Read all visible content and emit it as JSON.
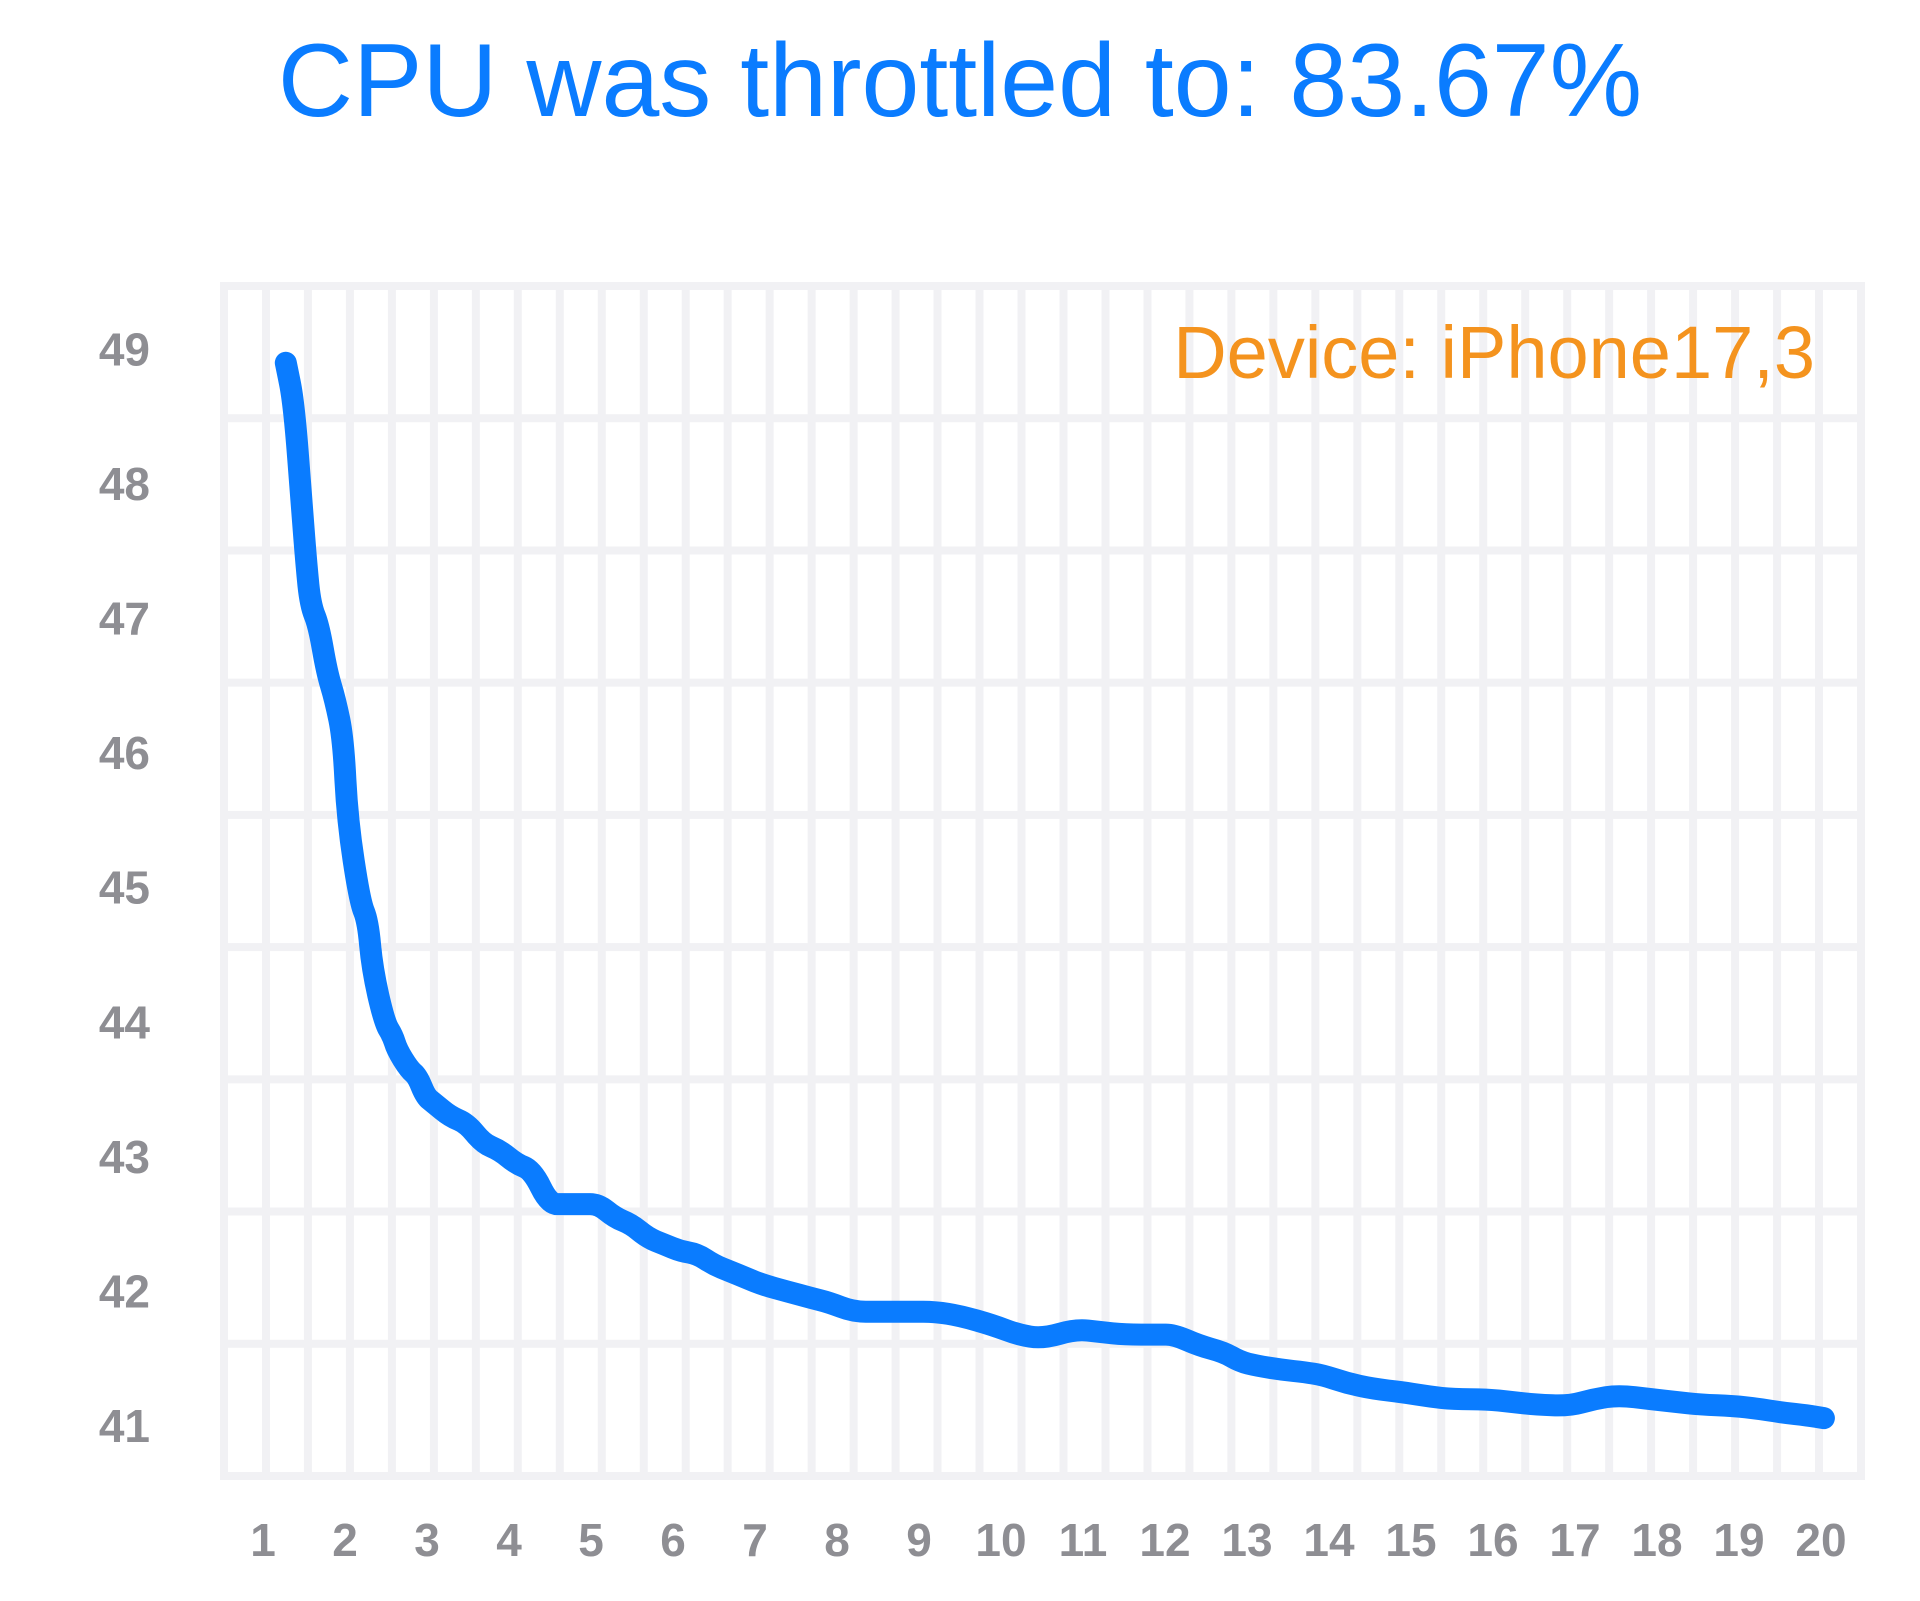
{
  "title": "CPU was throttled to: 83.67%",
  "device_label": "Device: iPhone17,3",
  "colors": {
    "title": "#0a7cff",
    "line": "#0a7cff",
    "device": "#f4931e",
    "axis_text": "#8e8e93",
    "grid_bg": "#f1f1f4",
    "grid_cell": "#ffffff"
  },
  "chart_data": {
    "type": "line",
    "title": "CPU was throttled to: 83.67%",
    "annotation": "Device: iPhone17,3",
    "xlabel": "",
    "ylabel": "",
    "xlim": [
      0.6,
      20.6
    ],
    "ylim": [
      40.6,
      49.5
    ],
    "x_ticks": [
      "1",
      "2",
      "3",
      "4",
      "5",
      "6",
      "7",
      "8",
      "9",
      "10",
      "11",
      "12",
      "13",
      "14",
      "15",
      "16",
      "17",
      "18",
      "19",
      "20"
    ],
    "y_ticks": [
      "41",
      "42",
      "43",
      "44",
      "45",
      "46",
      "47",
      "48",
      "49"
    ],
    "grid": true,
    "legend": "none",
    "series": [
      {
        "x": [
          1.4,
          1.5,
          1.6,
          1.65,
          1.7,
          1.8,
          1.9,
          2.0,
          2.1,
          2.15,
          2.3,
          2.4,
          2.45,
          2.6,
          2.7,
          2.75,
          2.9,
          3.0,
          3.1,
          3.2,
          3.4,
          3.6,
          3.8,
          4.0,
          4.2,
          4.4,
          4.6,
          4.8,
          5.0,
          5.2,
          5.4,
          5.6,
          5.8,
          6.0,
          6.2,
          6.4,
          6.6,
          6.8,
          7.0,
          7.2,
          7.5,
          7.8,
          8.0,
          8.3,
          8.6,
          9.0,
          9.3,
          9.6,
          10.0,
          10.3,
          10.6,
          11.0,
          11.3,
          11.6,
          12.0,
          12.2,
          12.5,
          12.8,
          13.0,
          13.2,
          13.5,
          13.8,
          14.0,
          14.3,
          14.6,
          15.0,
          15.3,
          15.6,
          16.0,
          16.3,
          16.6,
          17.0,
          17.3,
          17.6,
          18.0,
          18.3,
          18.6,
          19.0,
          19.3,
          19.6,
          19.9,
          20.1
        ],
        "y": [
          48.9,
          48.6,
          47.8,
          47.4,
          47.1,
          46.95,
          46.6,
          46.4,
          46.1,
          45.5,
          44.9,
          44.75,
          44.4,
          44.0,
          43.9,
          43.8,
          43.65,
          43.6,
          43.45,
          43.4,
          43.3,
          43.25,
          43.1,
          43.05,
          42.95,
          42.9,
          42.65,
          42.65,
          42.65,
          42.65,
          42.55,
          42.5,
          42.4,
          42.35,
          42.3,
          42.28,
          42.2,
          42.15,
          42.1,
          42.05,
          42.0,
          41.95,
          41.92,
          41.85,
          41.85,
          41.85,
          41.85,
          41.82,
          41.75,
          41.68,
          41.65,
          41.72,
          41.7,
          41.68,
          41.68,
          41.68,
          41.6,
          41.55,
          41.48,
          41.45,
          41.42,
          41.4,
          41.38,
          41.32,
          41.28,
          41.25,
          41.22,
          41.2,
          41.2,
          41.18,
          41.16,
          41.15,
          41.2,
          41.23,
          41.2,
          41.18,
          41.16,
          41.15,
          41.13,
          41.1,
          41.08,
          41.06
        ]
      }
    ]
  }
}
